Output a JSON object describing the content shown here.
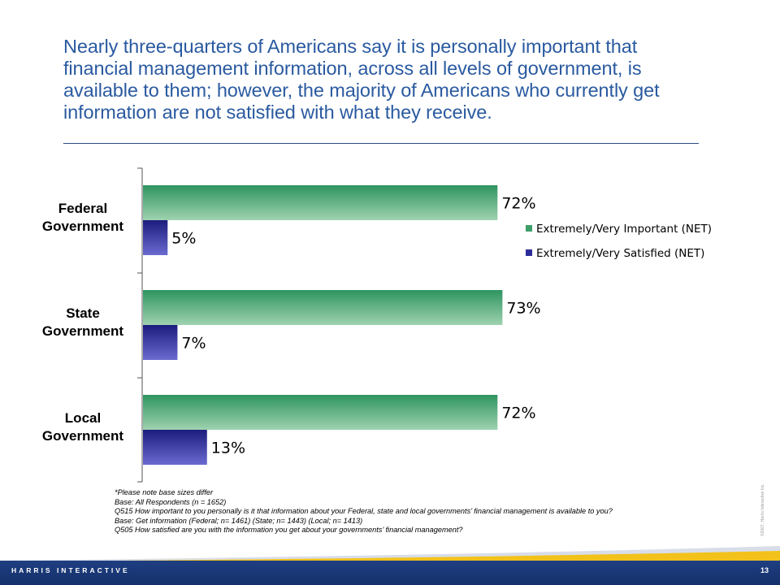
{
  "slide": {
    "title": "Nearly three-quarters of Americans say it is personally important that financial management information, across all levels of government, is available to them; however, the majority of Americans who currently get information are not satisfied with what they receive.",
    "page_number": "13",
    "brand": "HARRIS INTERACTIVE",
    "copyright": "©2007, Harris Interactive Inc."
  },
  "notes": [
    "*Please note base sizes differ",
    "Base: All Respondents (n = 1652)",
    "Q515 How important to you personally is it that information about your Federal, state and local governments’ financial management is  available to you?",
    "Base: Get information (Federal;  n= 1461) (State;  n= 1443)  (Local;  n= 1413)",
    "Q505 How satisfied are you with the information you get about your governments’ financial management?"
  ],
  "chart_data": {
    "type": "bar",
    "orientation": "horizontal",
    "categories": [
      "Federal Government",
      "State Government",
      "Local Government"
    ],
    "category_lines": [
      [
        "Federal",
        "Government"
      ],
      [
        "State",
        "Government"
      ],
      [
        "Local",
        "Government"
      ]
    ],
    "series": [
      {
        "name": "Extremely/Very Important (NET)",
        "values": [
          72,
          73,
          72
        ],
        "labels": [
          "72%",
          "73%",
          "72%"
        ],
        "color": "#3e9e6a"
      },
      {
        "name": "Extremely/Very Satisfied (NET)",
        "values": [
          5,
          7,
          13
        ],
        "labels": [
          "5%",
          "7%",
          "13%"
        ],
        "color": "#2c2c9a"
      }
    ],
    "xlim": [
      0,
      100
    ],
    "legend_position": "right",
    "grid": false
  }
}
